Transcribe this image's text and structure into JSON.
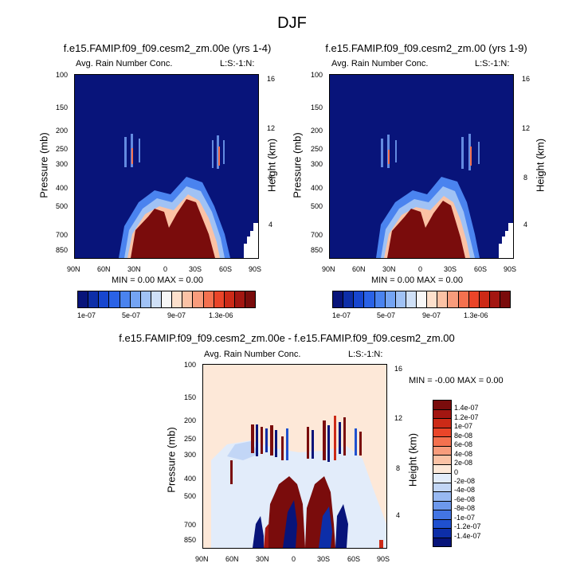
{
  "title": "DJF",
  "panels": [
    {
      "title": "f.e15.FAMIP.f09_f09.cesm2_zm.00e (yrs 1-4)",
      "left_label": "Avg. Rain Number Conc.",
      "right_label": "L:S:-1:N:",
      "ylabel_left": "Pressure (mb)",
      "ylabel_right": "Height (km)",
      "stats": "MIN =  0.00   MAX =  0.00"
    },
    {
      "title": "f.e15.FAMIP.f09_f09.cesm2_zm.00 (yrs 1-9)",
      "left_label": "Avg. Rain Number Conc.",
      "right_label": "L:S:-1:N:",
      "ylabel_left": "Pressure (mb)",
      "ylabel_right": "Height (km)",
      "stats": "MIN =  0.00   MAX =  0.00"
    },
    {
      "title": "f.e15.FAMIP.f09_f09.cesm2_zm.00e - f.e15.FAMIP.f09_f09.cesm2_zm.00",
      "left_label": "Avg. Rain Number Conc.",
      "right_label": "L:S:-1:N:",
      "ylabel_left": "Pressure (mb)",
      "ylabel_right": "Height (km)",
      "stats": "MIN = -0.00   MAX =  0.00"
    }
  ],
  "axes": {
    "x_ticks": [
      "90N",
      "60N",
      "30N",
      "0",
      "30S",
      "60S",
      "90S"
    ],
    "pressure_ticks": [
      "100",
      "150",
      "200",
      "250",
      "300",
      "400",
      "500",
      "700",
      "850"
    ],
    "height_ticks": [
      "16",
      "12",
      "8",
      "4"
    ]
  },
  "colorbar_top": {
    "labels": [
      "1e-07",
      "5e-07",
      "9e-07",
      "1.3e-06"
    ],
    "colors": [
      "#08147a",
      "#0d2ea8",
      "#1746cf",
      "#2a62e6",
      "#4a83ef",
      "#74a4f3",
      "#a0c2f5",
      "#cfe0f7",
      "#f7f7f7",
      "#fde0cc",
      "#fbc2a5",
      "#f89c7c",
      "#f4714f",
      "#ea4529",
      "#cc2a17",
      "#a31611",
      "#7a0c0c"
    ]
  },
  "colorbar_diff": {
    "labels": [
      "1.4e-07",
      "1.2e-07",
      "1e-07",
      "8e-08",
      "6e-08",
      "4e-08",
      "2e-08",
      "0",
      "-2e-08",
      "-4e-08",
      "-6e-08",
      "-8e-08",
      "-1e-07",
      "-1.2e-07",
      "-1.4e-07"
    ],
    "colors": [
      "#7a0c0c",
      "#a31611",
      "#cc2a17",
      "#ea4529",
      "#f4714f",
      "#f89c7c",
      "#fbc2a5",
      "#fde8d8",
      "#e2ecfa",
      "#c2d6f6",
      "#98b9f2",
      "#6d98ec",
      "#4375e3",
      "#1f50cf",
      "#0d2ea8",
      "#08147a"
    ]
  },
  "chart_data": [
    {
      "type": "heatmap",
      "title": "f.e15.FAMIP.f09_f09.cesm2_zm.00e (yrs 1-4)",
      "x": [
        "90N",
        "60N",
        "30N",
        "0",
        "30S",
        "60S",
        "90S"
      ],
      "ylabel": "Pressure (mb)",
      "y2label": "Height (km)",
      "ylim": [
        850,
        100
      ],
      "variable": "Avg. Rain Number Conc.",
      "min": 0.0,
      "max": 0.0,
      "background_color": "#08147a",
      "feature_color": "#7a0c0c",
      "features": [
        {
          "lat": [
            35,
            -18
          ],
          "p": [
            850,
            370
          ],
          "description": "tropical maximum"
        },
        {
          "lat": [
            -18,
            -35
          ],
          "p": [
            850,
            520
          ],
          "description": "southern subtropical maximum"
        }
      ]
    },
    {
      "type": "heatmap",
      "title": "f.e15.FAMIP.f09_f09.cesm2_zm.00 (yrs 1-9)",
      "x": [
        "90N",
        "60N",
        "30N",
        "0",
        "30S",
        "60S",
        "90S"
      ],
      "ylabel": "Pressure (mb)",
      "y2label": "Height (km)",
      "ylim": [
        850,
        100
      ],
      "variable": "Avg. Rain Number Conc.",
      "min": 0.0,
      "max": 0.0,
      "background_color": "#08147a",
      "feature_color": "#7a0c0c",
      "features": [
        {
          "lat": [
            35,
            -20
          ],
          "p": [
            850,
            380
          ],
          "description": "tropical maximum"
        },
        {
          "lat": [
            -20,
            -35
          ],
          "p": [
            850,
            520
          ],
          "description": "southern subtropical maximum"
        }
      ]
    },
    {
      "type": "heatmap",
      "title": "f.e15.FAMIP.f09_f09.cesm2_zm.00e - f.e15.FAMIP.f09_f09.cesm2_zm.00",
      "x": [
        "90N",
        "60N",
        "30N",
        "0",
        "30S",
        "60S",
        "90S"
      ],
      "ylabel": "Pressure (mb)",
      "y2label": "Height (km)",
      "ylim": [
        850,
        100
      ],
      "variable": "Avg. Rain Number Conc.",
      "min": -0.0,
      "max": 0.0,
      "background_color": "#fde8d8"
    }
  ]
}
